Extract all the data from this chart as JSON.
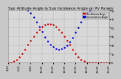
{
  "title": "Sun Altitude Angle & Sun Incidence Angle on PV Panels",
  "legend_labels": [
    "Sun Altitude Angle",
    "Sun Incidence Angle"
  ],
  "legend_colors": [
    "#cc0000",
    "#0000cc"
  ],
  "bg_color": "#c8c8c8",
  "plot_bg": "#d8d8d8",
  "grid_color": "#888888",
  "ylim": [
    0,
    90
  ],
  "yticks": [
    0,
    15,
    30,
    45,
    60,
    75,
    90
  ],
  "title_color": "#000000",
  "title_fontsize": 4.0,
  "tick_fontsize": 2.8,
  "sun_alt_x": [
    0.0,
    0.5,
    1.0,
    1.5,
    2.0,
    2.5,
    3.0,
    3.5,
    4.0,
    4.5,
    5.0,
    5.5,
    6.0,
    6.5,
    7.0,
    7.5,
    8.0,
    8.5,
    9.0,
    9.5,
    10.0,
    10.5,
    11.0,
    11.5,
    12.0,
    12.5,
    13.0,
    13.5,
    14.0,
    14.5,
    15.0,
    15.5,
    16.0,
    16.5,
    17.0,
    17.5,
    18.0
  ],
  "sun_alt_y": [
    0,
    0,
    2,
    5,
    10,
    16,
    23,
    31,
    38,
    45,
    52,
    57,
    62,
    65,
    67,
    67,
    65,
    62,
    57,
    52,
    45,
    38,
    31,
    23,
    16,
    10,
    5,
    2,
    0,
    0,
    0,
    0,
    0,
    0,
    0,
    0,
    0
  ],
  "sun_inc_x": [
    3.5,
    4.0,
    4.5,
    5.0,
    5.5,
    6.0,
    6.5,
    7.0,
    7.5,
    8.0,
    8.5,
    9.0,
    9.5,
    10.0,
    10.5,
    11.0,
    11.5,
    12.0,
    12.5,
    13.0,
    13.5,
    14.0,
    14.5
  ],
  "sun_inc_y": [
    90,
    85,
    78,
    70,
    62,
    53,
    44,
    37,
    31,
    27,
    24,
    23,
    24,
    26,
    30,
    36,
    43,
    52,
    61,
    70,
    78,
    85,
    90
  ],
  "xlim": [
    0,
    18
  ],
  "xtick_positions": [
    0,
    2,
    4,
    6,
    8,
    10,
    12,
    14,
    16,
    18
  ],
  "xtick_labels": [
    "4:00",
    "6:00",
    "8:00",
    "10:00",
    "12:00",
    "14:00",
    "16:00",
    "18:00",
    "20:00",
    "22:00"
  ]
}
